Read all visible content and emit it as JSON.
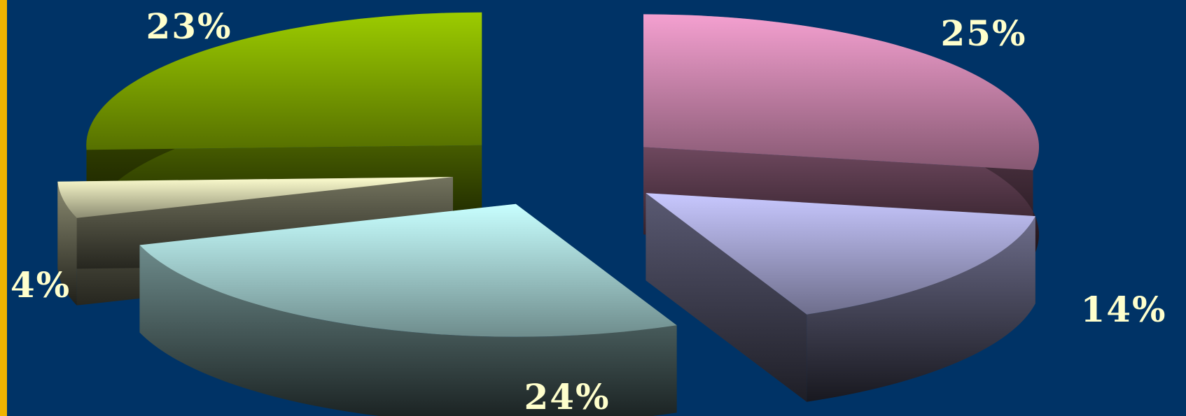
{
  "chart_data": {
    "type": "pie",
    "style": "3d-exploded",
    "slices": [
      {
        "value": 25,
        "label": "25%",
        "color": "#f4a0d0"
      },
      {
        "value": 14,
        "label": "14%",
        "color": "#c8c8ff"
      },
      {
        "value": 24,
        "label": "24%",
        "color": "#c8ffff"
      },
      {
        "value": 4,
        "label": "4%",
        "color": "#ffffd0"
      },
      {
        "value": 23,
        "label": "23%",
        "color": "#9ccc00"
      }
    ]
  },
  "colors": {
    "background": "#003366",
    "border": "#f0b400",
    "label": "#ffffcc"
  }
}
